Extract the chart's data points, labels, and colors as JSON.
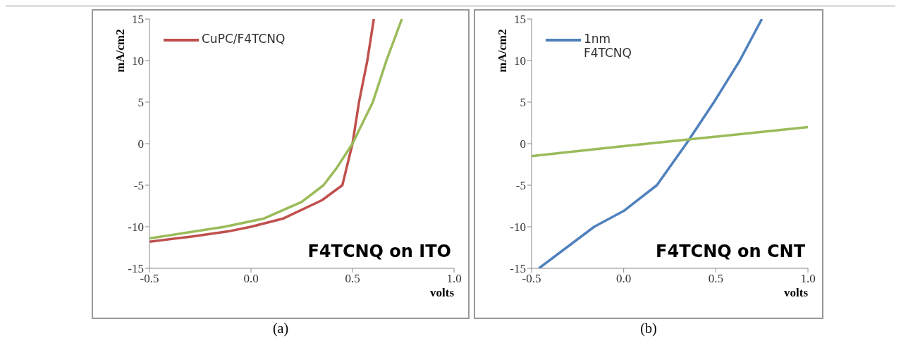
{
  "chart_data": [
    {
      "type": "line",
      "title": "F4TCNQ on ITO",
      "xlabel": "volts",
      "ylabel": "mA/cm2",
      "annotations": [
        "(a)"
      ],
      "xlim": [
        -0.5,
        1.0
      ],
      "xticks": [
        {
          "value": -0.5,
          "label": "-0.5"
        },
        {
          "value": 0,
          "label": "0.0"
        },
        {
          "value": 0.5,
          "label": "0.5"
        },
        {
          "value": 1.0,
          "label": "1.0"
        }
      ],
      "ylim": [
        -15,
        15
      ],
      "yticks": [
        -15,
        -10,
        -5,
        0,
        5,
        10,
        15
      ],
      "grid": false,
      "legend": "top left",
      "marker": "none",
      "line_style": "solid",
      "series": [
        {
          "name": "CuPC/F4TCNQ",
          "color": "#c0504d",
          "x": [
            -0.5,
            -0.3,
            -0.1,
            0,
            0.16,
            0.35,
            0.45,
            0.5,
            0.532,
            0.573,
            0.605
          ],
          "values": [
            -11.8,
            -11.2,
            -10.5,
            -10,
            -9,
            -6.8,
            -5,
            0,
            5,
            10,
            15
          ]
        },
        {
          "color": "#9bbb59",
          "x": [
            -0.5,
            -0.13,
            0.065,
            0.25,
            0.357,
            0.42,
            0.5,
            0.6,
            0.667,
            0.743
          ],
          "values": [
            -11.4,
            -10,
            -9,
            -7,
            -5,
            -3,
            0,
            5,
            10,
            15
          ]
        }
      ]
    },
    {
      "type": "line",
      "title": "F4TCNQ on CNT",
      "xlabel": "volts",
      "ylabel": "mA/cm2",
      "annotations": [
        "(b)"
      ],
      "xlim": [
        -0.5,
        1.0
      ],
      "xticks": [
        {
          "value": -0.5,
          "label": "-0.5"
        },
        {
          "value": 0,
          "label": "0.0"
        },
        {
          "value": 0.5,
          "label": "0.5"
        },
        {
          "value": 1.0,
          "label": "1.0"
        }
      ],
      "ylim": [
        -15,
        15
      ],
      "yticks": [
        -15,
        -10,
        -5,
        0,
        5,
        10,
        15
      ],
      "grid": false,
      "legend": "top left",
      "marker": "none",
      "line_style": "solid",
      "series": [
        {
          "name": "1nm F4TCNQ",
          "color": "#4f81bd",
          "x": [
            -0.46,
            -0.16,
            0,
            0.18,
            0.34,
            0.49,
            0.63,
            0.75
          ],
          "values": [
            -15,
            -10,
            -8.1,
            -5,
            0,
            5,
            10,
            15
          ]
        },
        {
          "color": "#9bbb59",
          "x": [
            -0.5,
            0,
            1.0
          ],
          "values": [
            -1.5,
            -0.3,
            2.0
          ]
        }
      ]
    }
  ]
}
